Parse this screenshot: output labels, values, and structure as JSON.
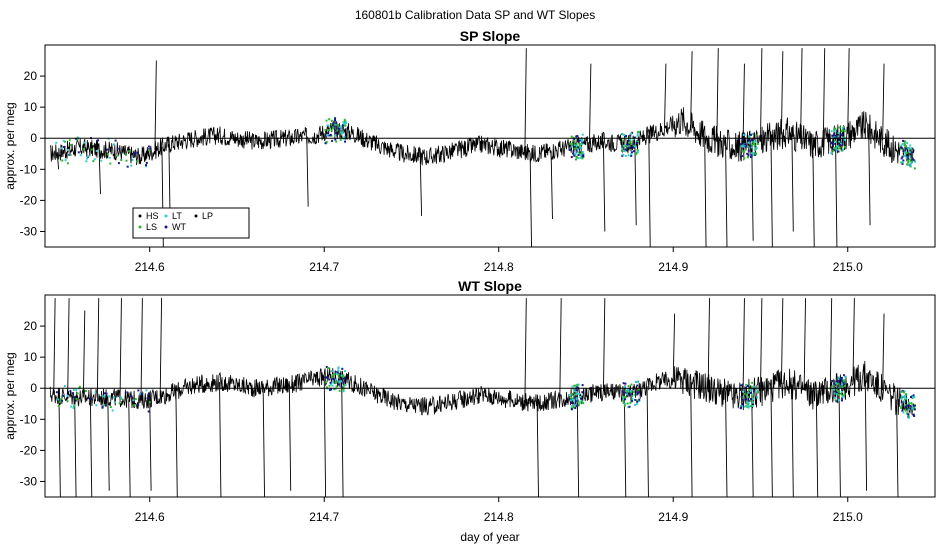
{
  "figure_title": "160801b   Calibration Data SP and WT Slopes",
  "colors": {
    "trace": "#000000",
    "HS": "#000000",
    "LS": "#2eb82e",
    "LT": "#33cccc",
    "WT": "#1a1a8c",
    "LP": "#000000"
  },
  "chart_data": [
    {
      "type": "line",
      "title": "SP Slope",
      "xlabel": "",
      "ylabel": "approx. per meg",
      "xlim": [
        214.54,
        215.05
      ],
      "ylim": [
        -35,
        30
      ],
      "x_ticks": [
        "214.6",
        "214.7",
        "214.8",
        "214.9",
        "215.0"
      ],
      "x_tick_values": [
        214.6,
        214.7,
        214.8,
        214.9,
        215.0
      ],
      "y_ticks": [
        "20",
        "10",
        "0",
        "-10",
        "-20",
        "-30"
      ],
      "y_tick_values": [
        20,
        10,
        0,
        -10,
        -20,
        -30
      ],
      "reference_line_y": 0,
      "legend": {
        "placement": "bottom-left",
        "entries": [
          "HS",
          "LT",
          "LP",
          "LS",
          "WT"
        ]
      },
      "baseline": [
        [
          214.543,
          -5
        ],
        [
          214.56,
          -3
        ],
        [
          214.58,
          -4
        ],
        [
          214.595,
          -6
        ],
        [
          214.61,
          -2
        ],
        [
          214.625,
          0
        ],
        [
          214.64,
          1
        ],
        [
          214.66,
          -1
        ],
        [
          214.68,
          0
        ],
        [
          214.695,
          1
        ],
        [
          214.705,
          3
        ],
        [
          214.715,
          2
        ],
        [
          214.73,
          -2
        ],
        [
          214.745,
          -5
        ],
        [
          214.76,
          -6
        ],
        [
          214.775,
          -4
        ],
        [
          214.79,
          -2
        ],
        [
          214.8,
          -3
        ],
        [
          214.82,
          -5
        ],
        [
          214.84,
          -3
        ],
        [
          214.86,
          -1
        ],
        [
          214.875,
          -2
        ],
        [
          214.89,
          2
        ],
        [
          214.905,
          6
        ],
        [
          214.92,
          0
        ],
        [
          214.935,
          -3
        ],
        [
          214.95,
          -1
        ],
        [
          214.965,
          2
        ],
        [
          214.98,
          -2
        ],
        [
          214.995,
          0
        ],
        [
          215.01,
          4
        ],
        [
          215.025,
          -3
        ],
        [
          215.038,
          -6
        ]
      ],
      "spikes": [
        [
          214.547,
          -10
        ],
        [
          214.571,
          -18
        ],
        [
          214.603,
          25
        ],
        [
          214.607,
          -35
        ],
        [
          214.611,
          -30
        ],
        [
          214.69,
          -22
        ],
        [
          214.755,
          -25
        ],
        [
          214.815,
          29
        ],
        [
          214.818,
          -35
        ],
        [
          214.83,
          -26
        ],
        [
          214.852,
          24
        ],
        [
          214.86,
          -30
        ],
        [
          214.878,
          -28
        ],
        [
          214.886,
          -35
        ],
        [
          214.895,
          24
        ],
        [
          214.91,
          28
        ],
        [
          214.918,
          -35
        ],
        [
          214.925,
          29
        ],
        [
          214.93,
          -35
        ],
        [
          214.94,
          24
        ],
        [
          214.945,
          -33
        ],
        [
          214.95,
          29
        ],
        [
          214.956,
          -35
        ],
        [
          214.962,
          28
        ],
        [
          214.968,
          -30
        ],
        [
          214.973,
          29
        ],
        [
          214.98,
          -35
        ],
        [
          214.986,
          29
        ],
        [
          214.993,
          -35
        ],
        [
          215.0,
          29
        ],
        [
          215.012,
          -28
        ],
        [
          215.02,
          24
        ]
      ]
    },
    {
      "type": "line",
      "title": "WT Slope",
      "xlabel": "day of year",
      "ylabel": "approx. per meg",
      "xlim": [
        214.54,
        215.05
      ],
      "ylim": [
        -35,
        30
      ],
      "x_ticks": [
        "214.6",
        "214.7",
        "214.8",
        "214.9",
        "215.0"
      ],
      "x_tick_values": [
        214.6,
        214.7,
        214.8,
        214.9,
        215.0
      ],
      "y_ticks": [
        "20",
        "10",
        "0",
        "-10",
        "-20",
        "-30"
      ],
      "y_tick_values": [
        20,
        10,
        0,
        -10,
        -20,
        -30
      ],
      "reference_line_y": 0,
      "baseline": [
        [
          214.543,
          -2
        ],
        [
          214.56,
          -3
        ],
        [
          214.58,
          -3
        ],
        [
          214.595,
          -4
        ],
        [
          214.61,
          -2
        ],
        [
          214.625,
          1
        ],
        [
          214.64,
          2
        ],
        [
          214.66,
          0
        ],
        [
          214.68,
          1
        ],
        [
          214.695,
          3
        ],
        [
          214.705,
          4
        ],
        [
          214.715,
          2
        ],
        [
          214.73,
          -2
        ],
        [
          214.745,
          -5
        ],
        [
          214.76,
          -6
        ],
        [
          214.775,
          -4
        ],
        [
          214.79,
          -2
        ],
        [
          214.8,
          -3
        ],
        [
          214.82,
          -5
        ],
        [
          214.84,
          -3
        ],
        [
          214.86,
          -1
        ],
        [
          214.875,
          -2
        ],
        [
          214.89,
          2
        ],
        [
          214.905,
          3
        ],
        [
          214.92,
          0
        ],
        [
          214.935,
          -3
        ],
        [
          214.95,
          -1
        ],
        [
          214.965,
          2
        ],
        [
          214.98,
          -2
        ],
        [
          214.995,
          0
        ],
        [
          215.01,
          4
        ],
        [
          215.025,
          -3
        ],
        [
          215.038,
          -6
        ]
      ],
      "spikes": [
        [
          214.545,
          29
        ],
        [
          214.548,
          -35
        ],
        [
          214.553,
          29
        ],
        [
          214.557,
          -35
        ],
        [
          214.562,
          25
        ],
        [
          214.566,
          -35
        ],
        [
          214.57,
          29
        ],
        [
          214.576,
          -33
        ],
        [
          214.583,
          29
        ],
        [
          214.588,
          -35
        ],
        [
          214.595,
          29
        ],
        [
          214.6,
          -33
        ],
        [
          214.606,
          29
        ],
        [
          214.615,
          -35
        ],
        [
          214.64,
          -35
        ],
        [
          214.665,
          -35
        ],
        [
          214.68,
          -33
        ],
        [
          214.7,
          -35
        ],
        [
          214.71,
          -35
        ],
        [
          214.815,
          29
        ],
        [
          214.822,
          -35
        ],
        [
          214.835,
          29
        ],
        [
          214.845,
          -35
        ],
        [
          214.86,
          29
        ],
        [
          214.872,
          -35
        ],
        [
          214.885,
          -35
        ],
        [
          214.9,
          24
        ],
        [
          214.91,
          -35
        ],
        [
          214.92,
          29
        ],
        [
          214.93,
          -35
        ],
        [
          214.94,
          29
        ],
        [
          214.945,
          -35
        ],
        [
          214.95,
          29
        ],
        [
          214.956,
          -35
        ],
        [
          214.962,
          29
        ],
        [
          214.968,
          -35
        ],
        [
          214.975,
          29
        ],
        [
          214.982,
          -35
        ],
        [
          214.99,
          29
        ],
        [
          214.995,
          -35
        ],
        [
          215.003,
          29
        ],
        [
          215.01,
          -33
        ],
        [
          215.02,
          24
        ],
        [
          215.028,
          -35
        ]
      ]
    }
  ]
}
